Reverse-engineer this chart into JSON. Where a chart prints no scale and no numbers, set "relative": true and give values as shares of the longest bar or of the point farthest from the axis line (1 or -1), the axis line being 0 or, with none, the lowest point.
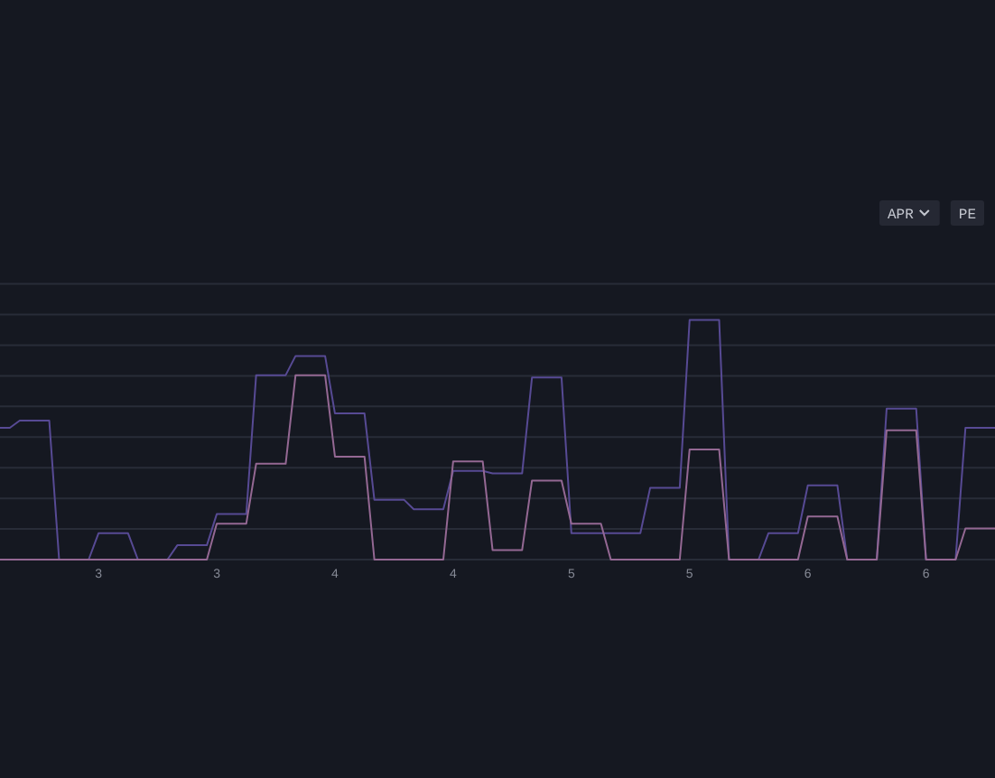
{
  "chart_data": {
    "type": "line",
    "relative": true,
    "grid": "y",
    "tick_labels": "x",
    "categories": [
      null,
      null,
      null,
      null,
      null,
      null,
      null,
      null,
      null,
      null,
      "3",
      null,
      null,
      null,
      null,
      null,
      null,
      null,
      null,
      null,
      null,
      null,
      "3",
      null,
      null,
      null,
      null,
      null,
      null,
      null,
      null,
      null,
      null,
      null,
      "4",
      null,
      null,
      null,
      null,
      null,
      null,
      null,
      null,
      null,
      null,
      null,
      "4",
      null,
      null,
      null,
      null,
      null,
      null,
      null,
      null,
      null,
      null,
      null,
      "5",
      null,
      null,
      null,
      null,
      null,
      null,
      null,
      null,
      null,
      null,
      null,
      "5",
      null,
      null,
      null,
      null,
      null,
      null,
      null,
      null,
      null,
      null,
      null,
      "6",
      null,
      null,
      null,
      null,
      null,
      null,
      null,
      null,
      null,
      null,
      null,
      "6",
      null,
      null,
      null,
      null,
      null,
      null,
      null
    ],
    "series": [
      {
        "color": "#574a94",
        "values": [
          0.55,
          0.55,
          0.58,
          0.58,
          0.58,
          0.58,
          0,
          0,
          0,
          0,
          0.11,
          0.11,
          0.11,
          0.11,
          0,
          0,
          0,
          0,
          0.06,
          0.06,
          0.06,
          0.06,
          0.19,
          0.19,
          0.19,
          0.19,
          0.77,
          0.77,
          0.77,
          0.77,
          0.85,
          0.85,
          0.85,
          0.85,
          0.61,
          0.61,
          0.61,
          0.61,
          0.25,
          0.25,
          0.25,
          0.25,
          0.21,
          0.21,
          0.21,
          0.21,
          0.37,
          0.37,
          0.37,
          0.37,
          0.36,
          0.36,
          0.36,
          0.36,
          0.76,
          0.76,
          0.76,
          0.76,
          0.11,
          0.11,
          0.11,
          0.11,
          0.11,
          0.11,
          0.11,
          0.11,
          0.3,
          0.3,
          0.3,
          0.3,
          1,
          1,
          1,
          1,
          0,
          0,
          0,
          0,
          0.11,
          0.11,
          0.11,
          0.11,
          0.31,
          0.31,
          0.31,
          0.31,
          0,
          0,
          0,
          0,
          0.63,
          0.63,
          0.63,
          0.63,
          0,
          0,
          0,
          0,
          0.55,
          0.55,
          0.55,
          0.55
        ]
      },
      {
        "color": "#946893",
        "values": [
          0,
          0,
          0,
          0,
          0,
          0,
          0,
          0,
          0,
          0,
          0,
          0,
          0,
          0,
          0,
          0,
          0,
          0,
          0,
          0,
          0,
          0,
          0.15,
          0.15,
          0.15,
          0.15,
          0.4,
          0.4,
          0.4,
          0.4,
          0.77,
          0.77,
          0.77,
          0.77,
          0.43,
          0.43,
          0.43,
          0.43,
          0,
          0,
          0,
          0,
          0,
          0,
          0,
          0,
          0.41,
          0.41,
          0.41,
          0.41,
          0.04,
          0.04,
          0.04,
          0.04,
          0.33,
          0.33,
          0.33,
          0.33,
          0.15,
          0.15,
          0.15,
          0.15,
          0,
          0,
          0,
          0,
          0,
          0,
          0,
          0,
          0.46,
          0.46,
          0.46,
          0.46,
          0,
          0,
          0,
          0,
          0,
          0,
          0,
          0,
          0.18,
          0.18,
          0.18,
          0.18,
          0,
          0,
          0,
          0,
          0.54,
          0.54,
          0.54,
          0.54,
          0,
          0,
          0,
          0,
          0.13,
          0.13,
          0.13,
          0.13
        ]
      }
    ],
    "annotations": [
      "APR",
      "PE"
    ]
  }
}
